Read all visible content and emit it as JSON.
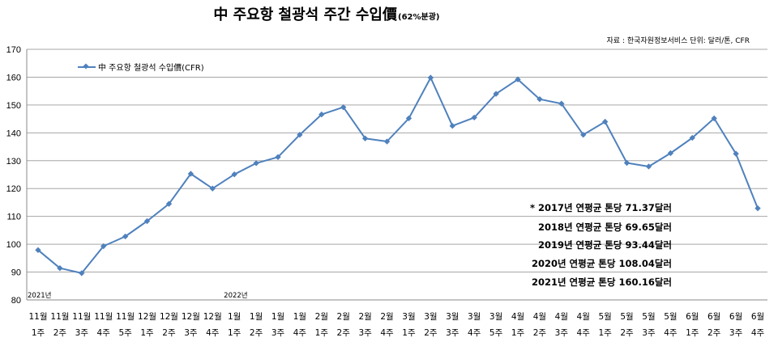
{
  "chart_data": {
    "type": "line",
    "title": "中 주요항 철광석 주간 수입價",
    "title_suffix": "(62%분광)",
    "source_note": "자료 : 한국자원정보서비스   단위: 달러/톤, CFR",
    "legend": {
      "label": "中 주요항 철광석 수입價(CFR)",
      "placement": "top-left"
    },
    "ylim": [
      80,
      170
    ],
    "yticks": [
      80,
      90,
      100,
      110,
      120,
      130,
      140,
      150,
      160,
      170
    ],
    "grid": true,
    "categories": [
      [
        "11월",
        "1주"
      ],
      [
        "11월",
        "2주"
      ],
      [
        "11월",
        "3주"
      ],
      [
        "11월",
        "4주"
      ],
      [
        "11월",
        "5주"
      ],
      [
        "12월",
        "1주"
      ],
      [
        "12월",
        "2주"
      ],
      [
        "12월",
        "3주"
      ],
      [
        "12월",
        "4주"
      ],
      [
        "1월",
        "1주"
      ],
      [
        "1월",
        "2주"
      ],
      [
        "1월",
        "3주"
      ],
      [
        "1월",
        "4주"
      ],
      [
        "2월",
        "1주"
      ],
      [
        "2월",
        "2주"
      ],
      [
        "2월",
        "3주"
      ],
      [
        "2월",
        "4주"
      ],
      [
        "3월",
        "1주"
      ],
      [
        "3월",
        "2주"
      ],
      [
        "3월",
        "3주"
      ],
      [
        "3월",
        "4주"
      ],
      [
        "3월",
        "5주"
      ],
      [
        "4월",
        "1주"
      ],
      [
        "4월",
        "2주"
      ],
      [
        "4월",
        "3주"
      ],
      [
        "4월",
        "4주"
      ],
      [
        "5월",
        "1주"
      ],
      [
        "5월",
        "2주"
      ],
      [
        "5월",
        "3주"
      ],
      [
        "5월",
        "4주"
      ],
      [
        "6월",
        "1주"
      ],
      [
        "6월",
        "2주"
      ],
      [
        "6월",
        "3주"
      ],
      [
        "6월",
        "4주"
      ]
    ],
    "year_markers": [
      {
        "label": "2021년",
        "category_index": 0
      },
      {
        "label": "2022년",
        "category_index": 9
      }
    ],
    "series": [
      {
        "name": "中 주요항 철광석 수입價(CFR)",
        "color": "#4F81BD",
        "values": [
          97.9,
          91.4,
          89.6,
          99.3,
          102.8,
          108.3,
          114.5,
          125.3,
          120.0,
          125.1,
          129.1,
          131.3,
          139.3,
          146.6,
          149.2,
          138.0,
          136.9,
          145.2,
          159.8,
          142.5,
          145.5,
          154.0,
          159.2,
          152.1,
          150.5,
          139.3,
          144.0,
          129.2,
          127.9,
          132.7,
          138.2,
          145.2,
          132.5,
          112.9
        ]
      }
    ],
    "annotations": [
      "* 2017년 연평균 톤당 71.37달러",
      "2018년 연평균 톤당 69.65달러",
      "2019년 연평균 톤당 93.44달러",
      "2020년 연평균 톤당 108.04달러",
      "2021년 연평균 톤당 160.16달러"
    ]
  }
}
